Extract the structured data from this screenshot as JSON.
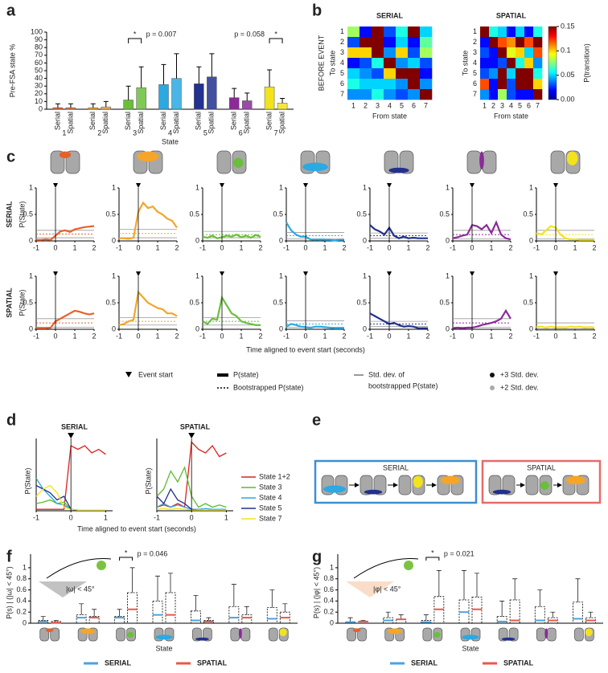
{
  "panel_labels": [
    "a",
    "b",
    "c",
    "d",
    "e",
    "f",
    "g"
  ],
  "state_colors": [
    "#e8602c",
    "#f4a52a",
    "#6abf3a",
    "#2aa9e3",
    "#22308f",
    "#8a2b98",
    "#f2e31c"
  ],
  "legend_c": {
    "event_start": "Event start",
    "p_state": "P(state)",
    "bootstrapped": "Bootstrapped P(state)",
    "std_dev": [
      "Std. dev. of",
      "bootstrapped P(state)"
    ],
    "plus3": "+3 Std. dev.",
    "plus2": "+2 Std. dev."
  },
  "diagram_e": {
    "serial_title": "SERIAL",
    "spatial_title": "SPATIAL",
    "serial_color": "#3d8fd1",
    "spatial_color": "#e86a6a"
  },
  "chart_data": [
    {
      "type": "bar",
      "ylabel": "Pre-FSA state %",
      "xlabel": "State",
      "categories": [
        "1",
        "2",
        "3",
        "4",
        "5",
        "6",
        "7"
      ],
      "series": [
        {
          "name": "Serial",
          "color": "#4aa3df",
          "values": [
            2,
            2,
            12,
            32,
            33,
            15,
            29
          ],
          "errors": [
            5,
            5,
            18,
            26,
            22,
            12,
            22
          ]
        },
        {
          "name": "Spatial",
          "color": "#e8584a",
          "values": [
            2,
            3,
            28,
            40,
            42,
            11,
            8
          ],
          "errors": [
            5,
            7,
            27,
            32,
            30,
            10,
            6
          ]
        }
      ],
      "ylim": [
        0,
        100
      ],
      "yticks": [
        0,
        10,
        20,
        30,
        40,
        50,
        60,
        70,
        80,
        90,
        100
      ],
      "annotations": [
        "p = 0.007",
        "p = 0.058"
      ],
      "significance_mark": "*"
    },
    {
      "type": "heatmap",
      "title": "SERIAL",
      "title_color": "#4fb3e8",
      "side_label": "BEFORE EVENT",
      "ylabel": "To state",
      "xlabel": "From state",
      "categories": [
        "1",
        "2",
        "3",
        "4",
        "5",
        "6",
        "7"
      ],
      "clim": [
        0,
        0.15
      ],
      "values": [
        [
          0.08,
          0.02,
          0.15,
          0.03,
          0.06,
          0.15,
          0.05
        ],
        [
          0.03,
          0.15,
          0.15,
          0.02,
          0.05,
          0.02,
          0.07
        ],
        [
          0.1,
          0.1,
          0.15,
          0.04,
          0.1,
          0.03,
          0.08
        ],
        [
          0.02,
          0.03,
          0.06,
          0.15,
          0.04,
          0.05,
          0.03
        ],
        [
          0.05,
          0.04,
          0.03,
          0.1,
          0.15,
          0.15,
          0.02
        ],
        [
          0.06,
          0.05,
          0.05,
          0.05,
          0.04,
          0.15,
          0.04
        ],
        [
          0.04,
          0.04,
          0.06,
          0.04,
          0.03,
          0.04,
          0.15
        ]
      ]
    },
    {
      "type": "heatmap",
      "title": "SPATIAL",
      "title_color": "#ef5b5b",
      "ylabel": "To state",
      "xlabel": "From state",
      "categories": [
        "1",
        "2",
        "3",
        "4",
        "5",
        "6",
        "7"
      ],
      "clim": [
        0,
        0.15
      ],
      "values": [
        [
          0.15,
          0.06,
          0.05,
          0.02,
          0.05,
          0.02,
          0.06
        ],
        [
          0.02,
          0.15,
          0.12,
          0.11,
          0.15,
          0.12,
          0.15
        ],
        [
          0.03,
          0.02,
          0.15,
          0.09,
          0.1,
          0.05,
          0.12
        ],
        [
          0.02,
          0.02,
          0.03,
          0.15,
          0.06,
          0.1,
          0.04
        ],
        [
          0.03,
          0.04,
          0.15,
          0.05,
          0.15,
          0.15,
          0.06
        ],
        [
          0.12,
          0.02,
          0.15,
          0.03,
          0.15,
          0.15,
          0.1
        ],
        [
          0.04,
          0.02,
          0.08,
          0.03,
          0.02,
          0.02,
          0.15
        ]
      ],
      "colorbar_label": "P(transition)",
      "colorbar_ticks": [
        {
          "value": 0,
          "label": "0.00"
        },
        {
          "value": 0.05,
          "label": "0.05"
        },
        0.1,
        0.15
      ]
    },
    {
      "type": "line-grid",
      "ylabel": "P(State)",
      "xlabel": "Time aligned to event start (seconds)",
      "row_labels": [
        "SERIAL",
        "SPATIAL"
      ],
      "row_colors": [
        "#3fa9e0",
        "#e8643a"
      ],
      "event_x": 0,
      "x": [
        -1,
        -0.75,
        -0.5,
        -0.25,
        0,
        0.25,
        0.5,
        0.75,
        1,
        1.25,
        1.5,
        1.75,
        2
      ],
      "xlim": [
        -1,
        2
      ],
      "xticks": [
        -1,
        0,
        1,
        2
      ],
      "ylim": [
        0,
        1
      ],
      "yticks": [
        0,
        0.5,
        1
      ],
      "rows": [
        [
          {
            "values": [
              0.02,
              0.02,
              0.03,
              0.02,
              0.1,
              0.18,
              0.2,
              0.17,
              0.22,
              0.24,
              0.26,
              0.27,
              0.28
            ],
            "bootstrap": 0.13,
            "std_dev": 0.07
          },
          {
            "values": [
              0.05,
              0.05,
              0.04,
              0.06,
              0.55,
              0.72,
              0.62,
              0.65,
              0.55,
              0.5,
              0.42,
              0.38,
              0.25
            ],
            "bootstrap": 0.14,
            "std_dev": 0.08
          },
          {
            "values": [
              0.08,
              0.06,
              0.1,
              0.05,
              0.07,
              0.1,
              0.08,
              0.12,
              0.07,
              0.1,
              0.06,
              0.11,
              0.08
            ],
            "bootstrap": 0.12,
            "std_dev": 0.06
          },
          {
            "values": [
              0.35,
              0.2,
              0.12,
              0.08,
              0.08,
              0.03,
              0.02,
              0.03,
              0.02,
              0.02,
              0.01,
              0.02,
              0.02
            ],
            "bootstrap": 0.1,
            "std_dev": 0.06
          },
          {
            "values": [
              0.3,
              0.22,
              0.18,
              0.12,
              0.25,
              0.1,
              0.05,
              0.08,
              0.05,
              0.06,
              0.05,
              0.05,
              0.05
            ],
            "bootstrap": 0.1,
            "std_dev": 0.05
          },
          {
            "values": [
              0.05,
              0.07,
              0.1,
              0.12,
              0.3,
              0.28,
              0.22,
              0.3,
              0.15,
              0.35,
              0.12,
              0.05,
              0.03
            ],
            "bootstrap": 0.12,
            "std_dev": 0.08
          },
          {
            "values": [
              0.15,
              0.12,
              0.2,
              0.28,
              0.25,
              0.12,
              0.05,
              0.03,
              0.03,
              0.02,
              0.02,
              0.02,
              0.02
            ],
            "bootstrap": 0.12,
            "std_dev": 0.08
          }
        ],
        [
          {
            "values": [
              0.02,
              0.02,
              0.02,
              0.03,
              0.15,
              0.2,
              0.25,
              0.3,
              0.35,
              0.33,
              0.3,
              0.28,
              0.3
            ],
            "bootstrap": 0.12,
            "std_dev": 0.08
          },
          {
            "values": [
              0.08,
              0.1,
              0.15,
              0.18,
              0.7,
              0.6,
              0.5,
              0.45,
              0.4,
              0.38,
              0.3,
              0.3,
              0.25
            ],
            "bootstrap": 0.15,
            "std_dev": 0.07
          },
          {
            "values": [
              0.15,
              0.1,
              0.2,
              0.18,
              0.6,
              0.45,
              0.3,
              0.25,
              0.15,
              0.12,
              0.1,
              0.08,
              0.08
            ],
            "bootstrap": 0.15,
            "std_dev": 0.07
          },
          {
            "values": [
              0.05,
              0.1,
              0.08,
              0.05,
              0.04,
              0.03,
              0.05,
              0.05,
              0.04,
              0.03,
              0.02,
              0.02,
              0.02
            ],
            "bootstrap": 0.1,
            "std_dev": 0.06
          },
          {
            "values": [
              0.3,
              0.25,
              0.2,
              0.15,
              0.1,
              0.12,
              0.08,
              0.05,
              0.06,
              0.05,
              0.02,
              0.02,
              0.02
            ],
            "bootstrap": 0.1,
            "std_dev": 0.05
          },
          {
            "values": [
              0.02,
              0.03,
              0.02,
              0.03,
              0.03,
              0.05,
              0.08,
              0.1,
              0.12,
              0.15,
              0.2,
              0.35,
              0.2
            ],
            "bootstrap": 0.12,
            "std_dev": 0.08
          },
          {
            "values": [
              0.04,
              0.05,
              0.03,
              0.05,
              0.03,
              0.04,
              0.03,
              0.05,
              0.04,
              0.05,
              0.03,
              0.04,
              0.03
            ],
            "bootstrap": 0.05,
            "std_dev": 0.07
          }
        ]
      ]
    },
    {
      "type": "line",
      "title": "SERIAL",
      "title_color": "#3fa9e0",
      "ylabel": "P(State)",
      "xlabel": "Time aligned to event start (seconds)",
      "event_x": 0,
      "x": [
        -1,
        -0.8,
        -0.6,
        -0.4,
        -0.2,
        0,
        0.2,
        0.4,
        0.6,
        0.8,
        1
      ],
      "xlim": [
        -1,
        1.2
      ],
      "xticks": [
        -1,
        0,
        1
      ],
      "ylim": [
        0,
        1
      ],
      "series": [
        {
          "name": "State 1+2",
          "color": "#e02020",
          "values": [
            0.02,
            0.02,
            0.02,
            0.02,
            0.02,
            0.9,
            0.85,
            0.9,
            0.8,
            0.85,
            0.78
          ]
        },
        {
          "name": "State 3",
          "color": "#5dbb2f",
          "values": [
            0.1,
            0.12,
            0.15,
            0.1,
            0.12,
            0.02,
            0.01,
            0.01,
            0.01,
            0.01,
            0.01
          ]
        },
        {
          "name": "State 4",
          "color": "#2aa9e3",
          "values": [
            0.45,
            0.3,
            0.2,
            0.1,
            0.08,
            0.02,
            0.01,
            0.01,
            0.01,
            0.01,
            0.01
          ]
        },
        {
          "name": "State 5",
          "color": "#22308f",
          "values": [
            0.35,
            0.3,
            0.25,
            0.15,
            0.2,
            0.02,
            0.01,
            0.01,
            0.01,
            0.01,
            0.01
          ]
        },
        {
          "name": "State 7",
          "color": "#f2e31c",
          "values": [
            0.2,
            0.3,
            0.35,
            0.25,
            0.05,
            0.02,
            0.01,
            0.01,
            0.01,
            0.01,
            0.01
          ]
        }
      ]
    },
    {
      "type": "line",
      "title": "SPATIAL",
      "title_color": "#e8643a",
      "ylabel": "P(State)",
      "event_x": 0,
      "x": [
        -1,
        -0.8,
        -0.6,
        -0.4,
        -0.2,
        0,
        0.2,
        0.4,
        0.6,
        0.8,
        1
      ],
      "xlim": [
        -1,
        1.2
      ],
      "xticks": [
        -1,
        0,
        1
      ],
      "ylim": [
        0,
        1
      ],
      "series": [
        {
          "color": "#e02020",
          "values": [
            0.05,
            0.08,
            0.05,
            0.1,
            0.05,
            0.95,
            0.85,
            0.8,
            0.9,
            0.75,
            0.8
          ]
        },
        {
          "color": "#5dbb2f",
          "values": [
            0.2,
            0.3,
            0.55,
            0.4,
            0.6,
            0.2,
            0.05,
            0.1,
            0.05,
            0.08,
            0.05
          ]
        },
        {
          "color": "#2aa9e3",
          "values": [
            0.05,
            0.1,
            0.05,
            0.08,
            0.05,
            0.02,
            0.02,
            0.03,
            0.02,
            0.02,
            0.02
          ]
        },
        {
          "color": "#22308f",
          "values": [
            0.2,
            0.1,
            0.3,
            0.15,
            0.1,
            0.02,
            0.01,
            0.01,
            0.01,
            0.01,
            0.01
          ]
        },
        {
          "color": "#f2e31c",
          "values": [
            0.02,
            0.03,
            0.02,
            0.03,
            0.02,
            0.01,
            0.01,
            0.01,
            0.01,
            0.01,
            0.01
          ]
        }
      ]
    },
    {
      "type": "box",
      "ylabel": "P(s) | (|ω| < 45°)",
      "xlabel": "State",
      "inset_label": "|ω| < 45°",
      "annotation": "p = 0.046",
      "significance_mark": "*",
      "ylim": [
        0,
        1.1
      ],
      "yticks": [
        0,
        0.2,
        0.4,
        0.6,
        0.8,
        1
      ],
      "series": [
        {
          "name": "SERIAL",
          "color": "#4aa3df",
          "q1": [
            0,
            0,
            0,
            0,
            0,
            0,
            0
          ],
          "median": [
            0.03,
            0.1,
            0.1,
            0.15,
            0.05,
            0.1,
            0.08
          ],
          "q3": [
            0.05,
            0.15,
            0.12,
            0.4,
            0.22,
            0.3,
            0.28
          ],
          "max": [
            0.12,
            0.35,
            0.25,
            0.85,
            0.5,
            0.7,
            0.6
          ]
        },
        {
          "name": "SPATIAL",
          "color": "#e8584a",
          "q1": [
            0,
            0,
            0,
            0,
            0,
            0,
            0
          ],
          "median": [
            0.01,
            0.1,
            0.25,
            0.15,
            0.03,
            0.1,
            0.1
          ],
          "q3": [
            0.03,
            0.12,
            0.55,
            0.55,
            0.05,
            0.15,
            0.2
          ],
          "max": [
            0.05,
            0.25,
            1,
            0.9,
            0.1,
            0.3,
            0.35
          ]
        }
      ]
    },
    {
      "type": "box",
      "ylabel": "P(s) | (|φ| < 45°)",
      "xlabel": "State",
      "inset_label": "|φ| < 45°",
      "annotation": "p = 0.021",
      "significance_mark": "*",
      "ylim": [
        0,
        1.1
      ],
      "yticks": [
        0,
        0.2,
        0.4,
        0.6,
        0.8,
        1
      ],
      "series": [
        {
          "name": "SERIAL",
          "color": "#4aa3df",
          "q1": [
            0,
            0,
            0,
            0,
            0,
            0,
            0
          ],
          "median": [
            0.02,
            0.05,
            0.02,
            0.2,
            0.03,
            0.05,
            0.08
          ],
          "q3": [
            0.02,
            0.1,
            0.05,
            0.42,
            0.12,
            0.3,
            0.38
          ],
          "max": [
            0.1,
            0.2,
            0.15,
            0.95,
            0.4,
            0.6,
            0.8
          ]
        },
        {
          "name": "SPATIAL",
          "color": "#e8584a",
          "q1": [
            0,
            0,
            0,
            0,
            0,
            0,
            0
          ],
          "median": [
            0.03,
            0.07,
            0.25,
            0.25,
            0.05,
            0.05,
            0.05
          ],
          "q3": [
            0.03,
            0.07,
            0.48,
            0.47,
            0.42,
            0.1,
            0.1
          ],
          "max": [
            0.05,
            0.15,
            0.95,
            0.9,
            0.8,
            0.2,
            0.2
          ]
        }
      ]
    }
  ]
}
